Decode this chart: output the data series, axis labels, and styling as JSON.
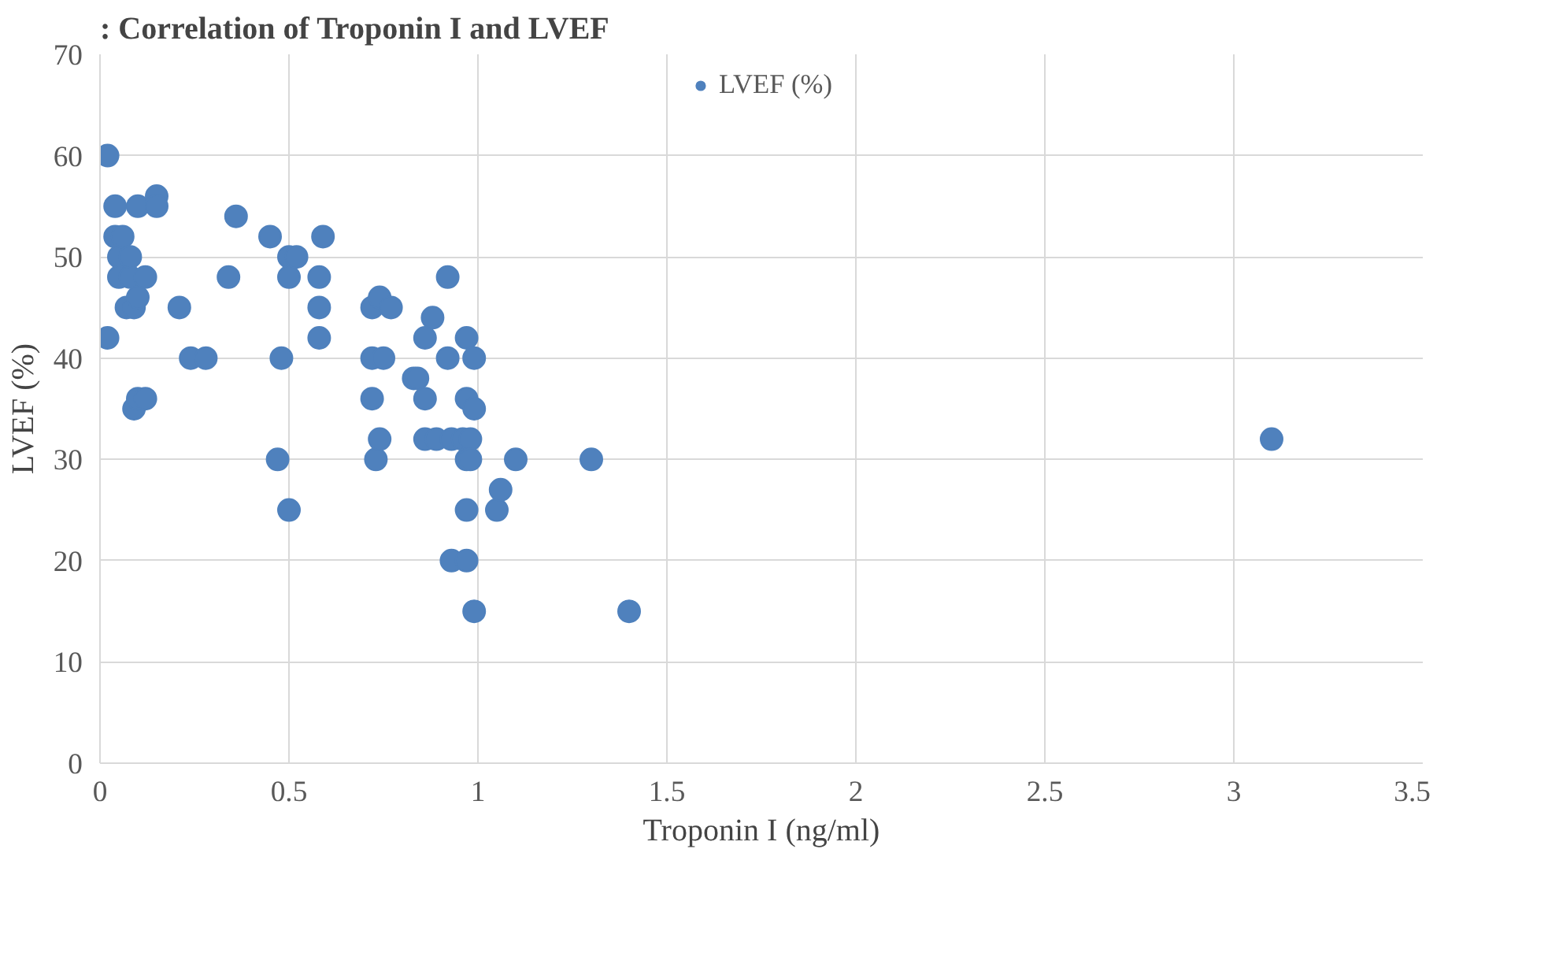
{
  "chart_data": {
    "type": "scatter",
    "title": ": Correlation of Troponin I and LVEF",
    "xlabel": "Troponin I (ng/ml)",
    "ylabel": "LVEF (%)",
    "xlim": [
      0,
      3.5
    ],
    "xticks": [
      0,
      0.5,
      1,
      1.5,
      2,
      2.5,
      3,
      3.5
    ],
    "ylim": [
      0,
      70
    ],
    "yticks": [
      0,
      10,
      20,
      30,
      40,
      50,
      60,
      70
    ],
    "grid": true,
    "legend": "top",
    "marker": "circle",
    "series": [
      {
        "name": "LVEF (%)",
        "color": "#4f81bd",
        "x": [
          0.02,
          0.02,
          0.04,
          0.04,
          0.05,
          0.05,
          0.06,
          0.07,
          0.08,
          0.08,
          0.09,
          0.09,
          0.1,
          0.1,
          0.1,
          0.12,
          0.12,
          0.15,
          0.15,
          0.21,
          0.24,
          0.28,
          0.34,
          0.36,
          0.45,
          0.47,
          0.48,
          0.5,
          0.5,
          0.5,
          0.52,
          0.58,
          0.58,
          0.58,
          0.59,
          0.72,
          0.72,
          0.72,
          0.73,
          0.74,
          0.74,
          0.75,
          0.77,
          0.83,
          0.84,
          0.86,
          0.86,
          0.86,
          0.88,
          0.89,
          0.92,
          0.92,
          0.93,
          0.93,
          0.96,
          0.97,
          0.97,
          0.97,
          0.97,
          0.97,
          0.98,
          0.98,
          0.99,
          0.99,
          0.99,
          1.05,
          1.06,
          1.1,
          1.3,
          1.4,
          3.1
        ],
        "values": [
          60,
          42,
          55,
          52,
          50,
          48,
          52,
          45,
          48,
          50,
          45,
          35,
          55,
          36,
          46,
          48,
          36,
          56,
          55,
          45,
          40,
          40,
          48,
          54,
          52,
          30,
          40,
          25,
          50,
          48,
          50,
          48,
          45,
          42,
          52,
          45,
          40,
          36,
          30,
          46,
          32,
          40,
          45,
          38,
          38,
          42,
          36,
          32,
          44,
          32,
          48,
          40,
          20,
          32,
          32,
          42,
          36,
          30,
          25,
          20,
          32,
          30,
          40,
          35,
          15,
          25,
          27,
          30,
          30,
          15,
          32
        ]
      }
    ]
  }
}
